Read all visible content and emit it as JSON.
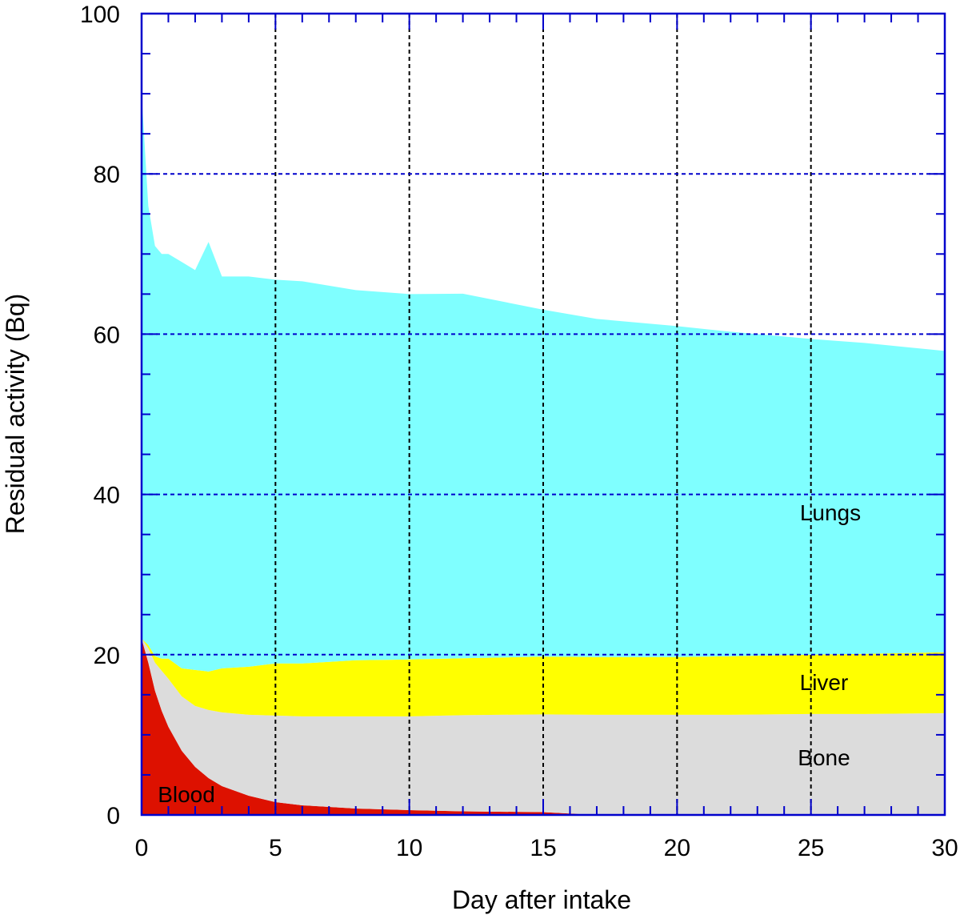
{
  "chart_data": {
    "type": "area",
    "stacked": true,
    "xlabel": "Day after intake",
    "ylabel": "Residual activity (Bq)",
    "xlim": [
      0,
      30
    ],
    "ylim": [
      0,
      100
    ],
    "xticks": [
      "0",
      "5",
      "10",
      "15",
      "20",
      "25",
      "30"
    ],
    "yticks": [
      "0",
      "20",
      "40",
      "60",
      "80",
      "100"
    ],
    "grid": true,
    "x": [
      0,
      0.25,
      0.5,
      0.75,
      1,
      1.5,
      2,
      2.5,
      3,
      4,
      5,
      6,
      8,
      10,
      12,
      15,
      17,
      20,
      22,
      25,
      27,
      30
    ],
    "series": [
      {
        "name": "Blood",
        "color": "#dd1100",
        "values": [
          22,
          19,
          15.5,
          13,
          11,
          8,
          6,
          4.6,
          3.6,
          2.4,
          1.6,
          1.2,
          0.8,
          0.6,
          0.45,
          0.35,
          0,
          0,
          0,
          0,
          0,
          0
        ]
      },
      {
        "name": "Bone",
        "color": "#dcdcdc",
        "values": [
          0,
          1.8,
          3.5,
          5,
          6,
          6.8,
          7.6,
          8.5,
          9.2,
          10.1,
          10.8,
          11.1,
          11.5,
          11.7,
          12,
          12.2,
          12.5,
          12.5,
          12.5,
          12.6,
          12.6,
          12.7
        ]
      },
      {
        "name": "Liver",
        "color": "#ffff00",
        "values": [
          0,
          0.4,
          0.8,
          1.5,
          2.5,
          3.5,
          4.5,
          4.8,
          5.5,
          6,
          6.5,
          6.6,
          7,
          7.1,
          7.1,
          7.2,
          7.2,
          7.2,
          7.3,
          7.4,
          7.5,
          7.6
        ]
      },
      {
        "name": "Lungs",
        "color": "#7fffff",
        "values": [
          68,
          54.8,
          51.2,
          50.5,
          50.5,
          50.7,
          49.9,
          53.6,
          48.9,
          48.7,
          47.9,
          47.7,
          46.2,
          45.6,
          45.5,
          43.3,
          42.2,
          41.3,
          40.5,
          39.4,
          38.8,
          37.6
        ]
      }
    ],
    "labels": {
      "lungs": "Lungs",
      "liver": "Liver",
      "bone": "Bone",
      "blood": "Blood"
    },
    "colors": {
      "axis": "#0000cc",
      "grid_horizontal": "#0000cc",
      "grid_vertical": "#000000"
    }
  }
}
